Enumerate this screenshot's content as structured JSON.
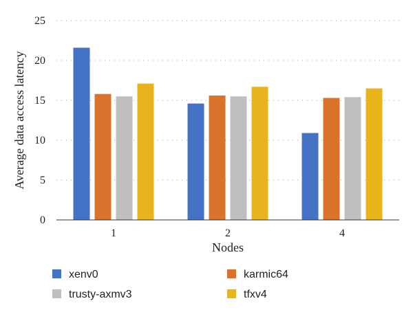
{
  "chart_data": {
    "type": "bar",
    "xlabel": "Nodes",
    "ylabel": "Average data access latency",
    "categories": [
      "1",
      "2",
      "4"
    ],
    "ylim": [
      0,
      25
    ],
    "yticks": [
      "0",
      "5",
      "10",
      "15",
      "20",
      "25"
    ],
    "grid": true,
    "legend_position": "bottom",
    "series": [
      {
        "name": "xenv0",
        "color": "#4472C4",
        "values": [
          21.6,
          14.6,
          10.9
        ]
      },
      {
        "name": "karmic64",
        "color": "#D9722A",
        "values": [
          15.8,
          15.6,
          15.3
        ]
      },
      {
        "name": "trusty-axmv3",
        "color": "#BFBFBF",
        "values": [
          15.5,
          15.5,
          15.4
        ]
      },
      {
        "name": "tfxv4",
        "color": "#E8B31C",
        "values": [
          17.1,
          16.7,
          16.5
        ]
      }
    ]
  }
}
